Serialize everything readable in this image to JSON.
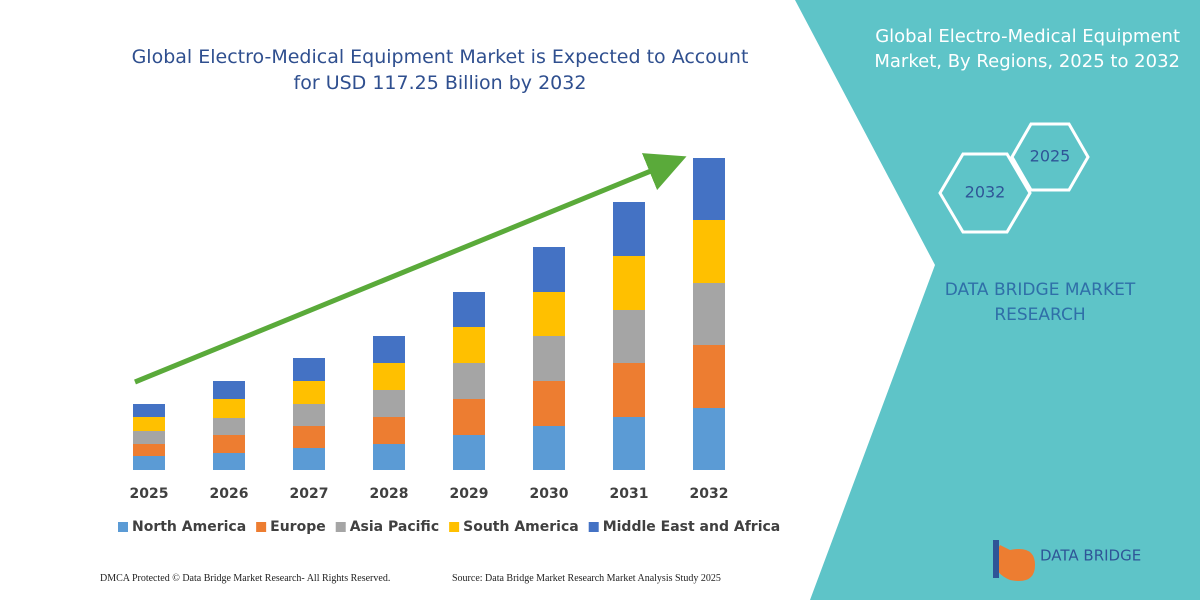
{
  "chart_data": {
    "type": "stacked-bar",
    "title": "Global Electro-Medical Equipment Market is Expected to Account for USD 117.25 Billion by 2032",
    "categories": [
      "2025",
      "2026",
      "2027",
      "2028",
      "2029",
      "2030",
      "2031",
      "2032"
    ],
    "series": [
      {
        "name": "North America",
        "color": "#5b9bd5",
        "values": [
          14,
          17,
          22,
          26,
          35,
          44,
          53,
          62
        ]
      },
      {
        "name": "Europe",
        "color": "#ed7d31",
        "values": [
          12,
          18,
          22,
          27,
          36,
          45,
          54,
          63
        ]
      },
      {
        "name": "Asia Pacific",
        "color": "#a5a5a5",
        "values": [
          13,
          17,
          22,
          27,
          36,
          45,
          53,
          62
        ]
      },
      {
        "name": "South America",
        "color": "#ffc000",
        "values": [
          14,
          19,
          23,
          27,
          36,
          44,
          54,
          63
        ]
      },
      {
        "name": "Middle East and Africa",
        "color": "#4472c4",
        "values": [
          13,
          18,
          23,
          27,
          35,
          45,
          54,
          62
        ]
      }
    ]
  },
  "panel": {
    "title": "Global Electro-Medical Equipment Market, By Regions, 2025 to 2032",
    "hexagons": [
      "2025",
      "2032"
    ],
    "brand": "DATA BRIDGE MARKET RESEARCH"
  },
  "footer": {
    "left": "DMCA Protected © Data Bridge Market Research-  All Rights Reserved.",
    "right": "Source: Data Bridge Market Research  Market Analysis Study 2025"
  },
  "logo": "DATA BRIDGE"
}
